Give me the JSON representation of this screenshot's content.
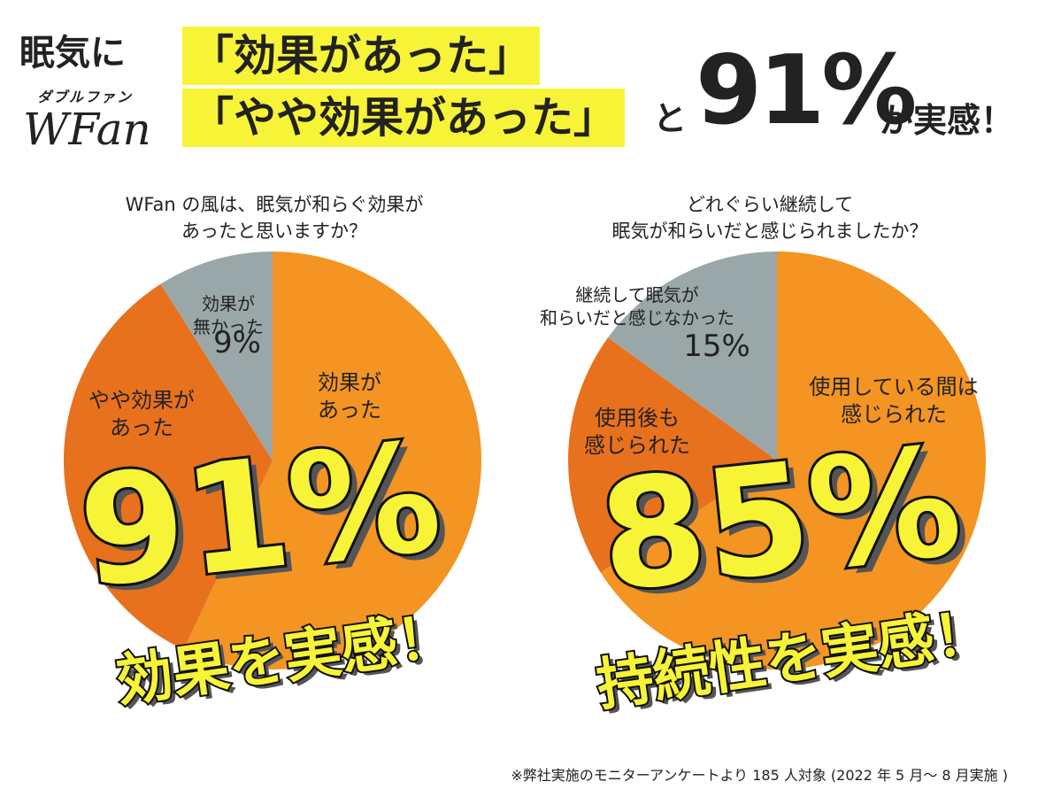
{
  "header": {
    "lead": "眠気に",
    "brand_ruby": "ダブルファン",
    "brand": "WFan",
    "line1": "「効果があった」",
    "line2": "「やや効果があった」",
    "connector": "と",
    "percent": "91%",
    "tail": "が実感！"
  },
  "colors": {
    "orange_light": "#f39423",
    "orange_dark": "#e8711e",
    "gray": "#9aa7a9",
    "yellow": "#f7f437"
  },
  "chart_data": [
    {
      "type": "pie",
      "question": "WFan の風は、眠気が和らぐ効果が\nあったと思いますか？",
      "slices": [
        {
          "label": "効果が\nあった",
          "value": 57
        },
        {
          "label": "やや効果が\nあった",
          "value": 34
        },
        {
          "label": "効果が\n無かった",
          "value": 9,
          "value_label": "9%"
        }
      ],
      "big_percent": "91%",
      "caption": "効果を実感！"
    },
    {
      "type": "pie",
      "question": "どれぐらい継続して\n眠気が和らいだと感じられましたか？",
      "slices": [
        {
          "label": "使用している間は\n感じられた",
          "value": 66
        },
        {
          "label": "使用後も\n感じられた",
          "value": 19
        },
        {
          "label": "継続して眠気が\n和らいだと感じなかった",
          "value": 15,
          "value_label": "15%"
        }
      ],
      "big_percent": "85%",
      "caption": "持続性を実感！"
    }
  ],
  "footnote": "※弊社実施のモニターアンケートより 185 人対象 (2022 年 5 月～ 8 月実施 )"
}
